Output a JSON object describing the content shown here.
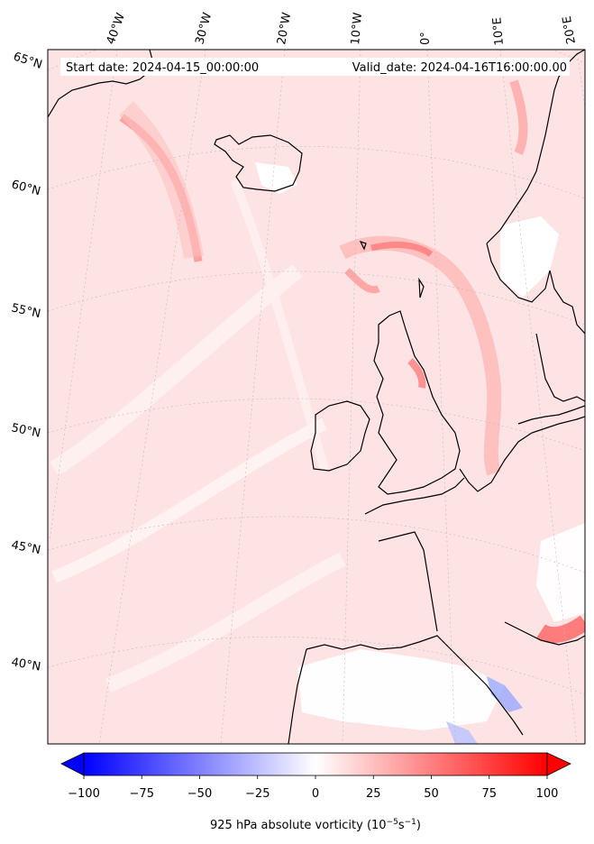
{
  "header": {
    "start_label": "Start date: 2024-04-15_00:00:00",
    "valid_label": "Valid_date: 2024-04-16T16:00:00.00"
  },
  "map": {
    "lon_labels": [
      "40°W",
      "30°W",
      "20°W",
      "10°W",
      "0°",
      "10°E",
      "20°E"
    ],
    "lat_labels": [
      "65°N",
      "60°N",
      "55°N",
      "50°N",
      "45°N",
      "40°N"
    ]
  },
  "colorbar": {
    "ticks": [
      "−100",
      "−75",
      "−50",
      "−25",
      "0",
      "25",
      "50",
      "75",
      "100"
    ],
    "label_prefix": "925 hPa absolute vorticity (10",
    "label_exp1": "−5",
    "label_mid": "s",
    "label_exp2": "−1",
    "label_suffix": ")",
    "min": -100,
    "max": 100,
    "colors": {
      "low": "#0000ff",
      "mid": "#ffffff",
      "high": "#ff0000"
    }
  },
  "colors": {
    "land_line": "#000000",
    "grid": "#bbbbbb",
    "field_base": "#fde0e0"
  }
}
